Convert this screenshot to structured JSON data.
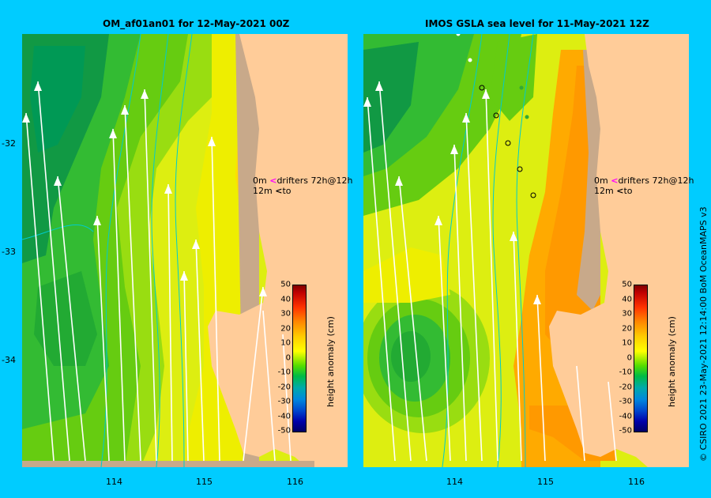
{
  "left_panel": {
    "title": "OM_af01an01  for 12-May-2021 00Z",
    "lat_labels": [
      "-32",
      "-33",
      "-34"
    ],
    "lon_labels": [
      "114",
      "115",
      "116"
    ],
    "drifter_legend": {
      "line1_prefix": "0m",
      "line1_text": "drifters 72h@12h",
      "line2_prefix": "12m",
      "line2_text": "to"
    },
    "colorbar": {
      "label": "height anomaly (cm)",
      "ticks": [
        "50",
        "40",
        "30",
        "20",
        "10",
        "0",
        "-10",
        "-20",
        "-30",
        "-40",
        "-50"
      ]
    }
  },
  "right_panel": {
    "title": "IMOS GSLA sea level  for 11-May-2021 12Z",
    "lon_labels": [
      "114",
      "115",
      "116"
    ],
    "drifter_legend": {
      "line1_prefix": "0m",
      "line1_text": "drifters 72h@12h",
      "line2_prefix": "12m",
      "line2_text": "to"
    },
    "colorbar": {
      "label": "height anomaly (cm)",
      "ticks": [
        "50",
        "40",
        "30",
        "20",
        "10",
        "0",
        "-10",
        "-20",
        "-30",
        "-40",
        "-50"
      ]
    }
  },
  "side_credit": "© CSIRO 2021   23-May-2021 12:14:00 BoM OceanMAPS v3",
  "colors": {
    "background": "#00ccff",
    "land": "#ffcc99",
    "shelf": "#c8a98a",
    "drifter_0m": "#ff00ff",
    "arrow": "#ffffff"
  }
}
